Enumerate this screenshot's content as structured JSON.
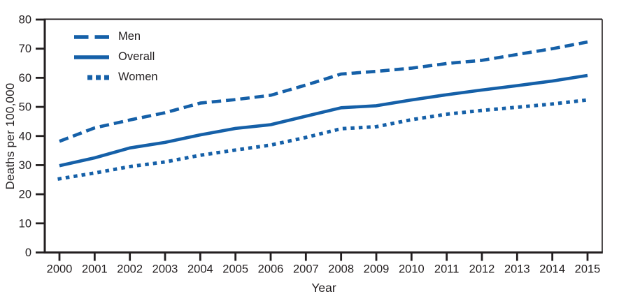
{
  "chart_data": {
    "type": "line",
    "title": "",
    "xlabel": "Year",
    "ylabel": "Deaths per 100,000",
    "x": [
      2000,
      2001,
      2002,
      2003,
      2004,
      2005,
      2006,
      2007,
      2008,
      2009,
      2010,
      2011,
      2012,
      2013,
      2014,
      2015
    ],
    "ylim": [
      0,
      80
    ],
    "ytick_step": 10,
    "grid": false,
    "legend_position": "top-left",
    "line_color": "#1560a8",
    "axis_color": "#231f20",
    "series": [
      {
        "name": "Men",
        "style": "dashed",
        "values": [
          38.2,
          42.8,
          45.5,
          48.0,
          51.3,
          52.5,
          54.0,
          57.5,
          61.3,
          62.2,
          63.3,
          64.9,
          66.0,
          68.0,
          70.0,
          72.3
        ]
      },
      {
        "name": "Overall",
        "style": "solid",
        "values": [
          29.8,
          32.5,
          35.9,
          37.8,
          40.4,
          42.6,
          43.9,
          46.8,
          49.7,
          50.4,
          52.4,
          54.2,
          55.8,
          57.3,
          58.9,
          60.8
        ]
      },
      {
        "name": "Women",
        "style": "dotted",
        "values": [
          25.3,
          27.3,
          29.5,
          31.1,
          33.4,
          35.2,
          36.9,
          39.5,
          42.5,
          43.2,
          45.6,
          47.5,
          48.8,
          49.9,
          51.0,
          52.4
        ]
      }
    ]
  }
}
